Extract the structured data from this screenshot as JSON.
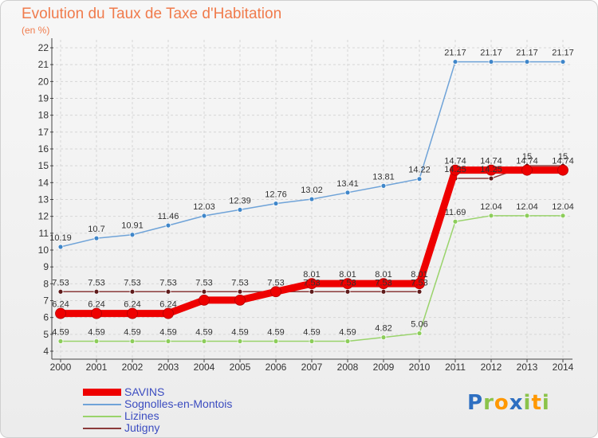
{
  "header": {
    "title": "Evolution du Taux de Taxe d'Habitation",
    "subtitle": "(en %)"
  },
  "logo": {
    "letters": [
      {
        "ch": "P",
        "color": "#2e6fc1"
      },
      {
        "ch": "r",
        "color": "#8bc34a"
      },
      {
        "ch": "o",
        "color": "#ff9800"
      },
      {
        "ch": "x",
        "color": "#2e6fc1"
      },
      {
        "ch": "i",
        "color": "#8bc34a"
      },
      {
        "ch": "t",
        "color": "#ff9800"
      },
      {
        "ch": "i",
        "color": "#8bc34a"
      }
    ]
  },
  "chart_data": {
    "type": "line",
    "categories": [
      "2000",
      "2001",
      "2002",
      "2003",
      "2004",
      "2005",
      "2006",
      "2007",
      "2008",
      "2009",
      "2010",
      "2011",
      "2012",
      "2013",
      "2014"
    ],
    "ylim": [
      4,
      22
    ],
    "y_ticks": [
      4,
      5,
      6,
      7,
      8,
      9,
      10,
      11,
      12,
      13,
      14,
      15,
      16,
      17,
      18,
      19,
      20,
      21,
      22
    ],
    "grid": true,
    "legend_position": "bottom-left",
    "series": [
      {
        "name": "SAVINS",
        "color": "#ee0000",
        "values": [
          6.24,
          6.24,
          6.24,
          6.24,
          7.03,
          7.03,
          7.53,
          8.01,
          8.01,
          8.01,
          8.01,
          14.74,
          14.74,
          14.74,
          14.74
        ],
        "labels": [
          "6.24",
          "6.24",
          "6.24",
          "6.24",
          "",
          "",
          "",
          "8.01",
          "8.01",
          "8.01",
          "8.01",
          "14.74",
          "14.74",
          "14.74",
          "14.74"
        ]
      },
      {
        "name": "Sognolles-en-Montois",
        "color": "#6fa3d8",
        "values": [
          10.19,
          10.7,
          10.91,
          11.46,
          12.03,
          12.39,
          12.76,
          13.02,
          13.41,
          13.81,
          14.22,
          21.17,
          21.17,
          21.17,
          21.17
        ],
        "labels": [
          "10.19",
          "10.7",
          "10.91",
          "11.46",
          "12.03",
          "12.39",
          "12.76",
          "13.02",
          "13.41",
          "13.81",
          "14.22",
          "21.17",
          "21.17",
          "21.17",
          "21.17"
        ]
      },
      {
        "name": "Lizines",
        "color": "#99d36b",
        "values": [
          4.59,
          4.59,
          4.59,
          4.59,
          4.59,
          4.59,
          4.59,
          4.59,
          4.59,
          4.82,
          5.06,
          11.69,
          12.04,
          12.04,
          12.04
        ],
        "labels": [
          "4.59",
          "4.59",
          "4.59",
          "4.59",
          "4.59",
          "4.59",
          "4.59",
          "4.59",
          "4.59",
          "4.82",
          "5.06",
          "11.69",
          "12.04",
          "12.04",
          "12.04"
        ]
      },
      {
        "name": "Jutigny",
        "color": "#8b3a3a",
        "values": [
          7.53,
          7.53,
          7.53,
          7.53,
          7.53,
          7.53,
          7.53,
          7.53,
          7.53,
          7.53,
          7.53,
          14.25,
          14.25,
          15,
          15
        ],
        "labels": [
          "7.53",
          "7.53",
          "7.53",
          "7.53",
          "7.53",
          "7.53",
          "7.53",
          "7.53",
          "7.53",
          "7.53",
          "7.53",
          "14.25",
          "14.25",
          "15",
          "15"
        ]
      }
    ]
  }
}
